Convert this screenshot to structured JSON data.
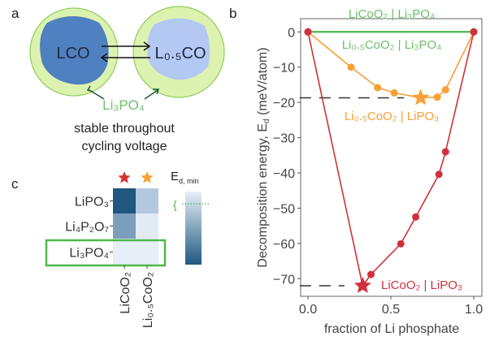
{
  "panels": {
    "a": "a",
    "b": "b",
    "c": "c"
  },
  "panel_a": {
    "left_particle": "LCO",
    "right_particle": "L₀.₅CO",
    "coating": "Li₃PO₄",
    "caption_line1": "stable throughout",
    "caption_line2": "cycling voltage",
    "colors": {
      "lco": "#4f80c0",
      "l05co": "#b4c8f4",
      "coating": "#dcf2b0",
      "coating_label": "#6cbf6c"
    }
  },
  "panel_c": {
    "rows": [
      "LiPO₃",
      "Li₄P₂O₇",
      "Li₃PO₄"
    ],
    "columns": [
      "LiCoO₂",
      "Li₀.₅CoO₂"
    ],
    "cell_colors": [
      [
        "#21577f",
        "#b3c8dc"
      ],
      [
        "#7c9ebd",
        "#e1ebf4"
      ],
      [
        "#e6eef7",
        "#e6eef7"
      ]
    ],
    "column_star_colors": [
      "#d93030",
      "#f7a035"
    ],
    "colorbar_label": "E",
    "colorbar_label_sub": "d, min",
    "highlight_row": "Li₃PO₄",
    "highlight_color": "#4cb84c"
  },
  "chart_data": {
    "type": "line",
    "xlabel": "fraction of Li phosphate",
    "ylabel": "Decomposition energy, E",
    "ylabel_sub": "d",
    "ylabel_suffix": " (meV/atom)",
    "xlim": [
      -0.05,
      1.05
    ],
    "ylim": [
      -74,
      4
    ],
    "xticks": [
      0.0,
      0.5,
      1.0
    ],
    "xtick_labels": [
      "0.0",
      "0.5",
      "1.0"
    ],
    "yticks": [
      0,
      -10,
      -20,
      -30,
      -40,
      -50,
      -60,
      -70
    ],
    "ytick_labels": [
      "0",
      "−10",
      "−20",
      "−30",
      "−40",
      "−50",
      "−60",
      "−70"
    ],
    "grid": false,
    "series": [
      {
        "name": "LiCoO₂ | Li₃PO₄",
        "color": "#4cb84c",
        "x": [
          0,
          1
        ],
        "y": [
          0,
          0
        ],
        "star_index": -1
      },
      {
        "name": "Li₀.₅CoO₂ | Li₃PO₄",
        "color": "#4cb84c",
        "x": [
          0,
          1
        ],
        "y": [
          0,
          0
        ],
        "star_index": -1
      },
      {
        "name": "Li₀.₅CoO₂ | LiPO₃",
        "color": "#f7a035",
        "x": [
          0,
          0.26,
          0.42,
          0.52,
          0.68,
          0.78,
          0.83,
          1
        ],
        "y": [
          0,
          -10,
          -15.8,
          -17.3,
          -18.7,
          -18.5,
          -16.4,
          0
        ],
        "star_index": 4
      },
      {
        "name": "LiCoO₂ | LiPO₃",
        "color": "#d0303c",
        "x": [
          0,
          0.33,
          0.38,
          0.56,
          0.65,
          0.79,
          0.83,
          1
        ],
        "y": [
          0,
          -72,
          -68.8,
          -60.1,
          -52.5,
          -40.4,
          -34,
          0
        ],
        "star_index": 1
      }
    ],
    "reference_lines": [
      {
        "y": -18.7,
        "x_from": -0.05,
        "x_to": 0.58
      },
      {
        "y": -72,
        "x_from": -0.05,
        "x_to": 0.22
      }
    ]
  }
}
